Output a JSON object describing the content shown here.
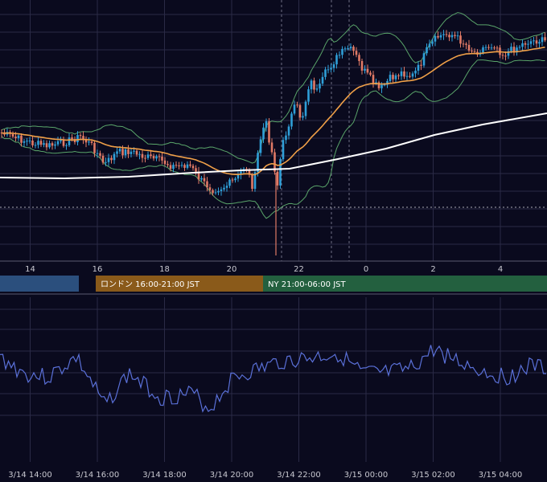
{
  "chart_data": [
    {
      "type": "candlestick",
      "overlays": [
        {
          "kind": "bollinger-bands",
          "color": "#5aa56a"
        },
        {
          "kind": "moving-average-fast",
          "color": "#f0a048"
        },
        {
          "kind": "moving-average-slow",
          "color": "#ffffff"
        }
      ],
      "x_ticks": [
        "14",
        "16",
        "18",
        "20",
        "22",
        "0",
        "2",
        "4"
      ],
      "sessions": [
        {
          "label": "",
          "color": "#2b4f7d"
        },
        {
          "label": "ロンドン 16:00-21:00 JST",
          "color": "#8a5a1a"
        },
        {
          "label": "NY 21:00-06:00 JST",
          "color": "#23603f"
        }
      ],
      "colors": {
        "up": "#2f9fd8",
        "down": "#e07a66",
        "background": "#0a0a1e",
        "grid": "#2a2a46"
      }
    },
    {
      "type": "line",
      "x_ticks": [
        "3/14 14:00",
        "3/14 16:00",
        "3/14 18:00",
        "3/14 20:00",
        "3/14 22:00",
        "3/15 00:00",
        "3/15 02:00",
        "3/15 04:00"
      ],
      "series": [
        {
          "color": "#5a70d8"
        }
      ]
    }
  ]
}
